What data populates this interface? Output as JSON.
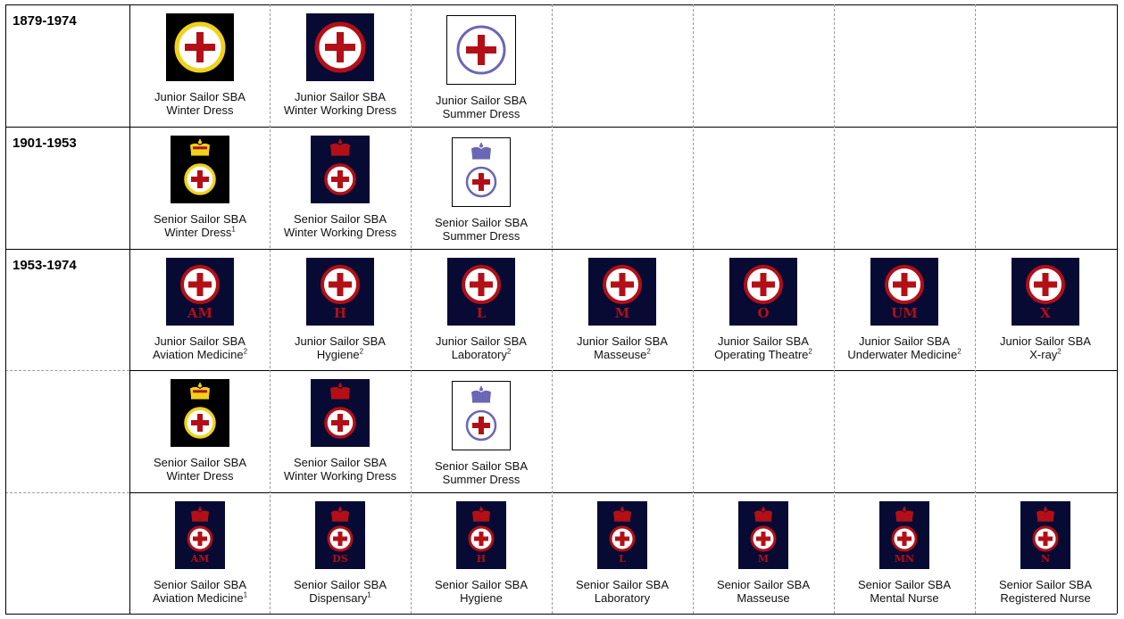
{
  "colors": {
    "navy": "#070a33",
    "black": "#000000",
    "red": "#b30f17",
    "gold": "#f0d21a",
    "lavender": "#6b67b4",
    "white": "#ffffff"
  },
  "rows": [
    {
      "period": "1879-1974",
      "badges": [
        {
          "title": "Junior Sailor SBA",
          "subtitle": "Winter Dress",
          "note": "",
          "style": "square",
          "bg": "black",
          "ring": "gold",
          "crown": false,
          "letters": ""
        },
        {
          "title": "Junior Sailor SBA",
          "subtitle": "Winter Working Dress",
          "note": "",
          "style": "square",
          "bg": "navy",
          "ring": "red",
          "crown": false,
          "letters": ""
        },
        {
          "title": "Junior Sailor SBA",
          "subtitle": "Summer Dress",
          "note": "",
          "style": "square",
          "bg": "white",
          "ring": "lavender",
          "crown": false,
          "letters": ""
        }
      ]
    },
    {
      "period": "1901-1953",
      "badges": [
        {
          "title": "Senior Sailor SBA",
          "subtitle": "Winter Dress",
          "note": "1",
          "style": "crown",
          "bg": "black",
          "ring": "gold",
          "crown": true,
          "crownColor": "gold",
          "letters": ""
        },
        {
          "title": "Senior Sailor SBA",
          "subtitle": "Winter Working Dress",
          "note": "",
          "style": "crown",
          "bg": "navy",
          "ring": "red",
          "crown": true,
          "crownColor": "red",
          "letters": ""
        },
        {
          "title": "Senior Sailor SBA",
          "subtitle": "Summer Dress",
          "note": "",
          "style": "crown",
          "bg": "white",
          "ring": "lavender",
          "crown": true,
          "crownColor": "lavender",
          "letters": ""
        }
      ]
    },
    {
      "period": "1953-1974",
      "badges": [
        {
          "title": "Junior Sailor SBA",
          "subtitle": "Aviation Medicine",
          "note": "2",
          "style": "letter",
          "bg": "navy",
          "ring": "red",
          "crown": false,
          "letters": "AM"
        },
        {
          "title": "Junior Sailor SBA",
          "subtitle": "Hygiene",
          "note": "2",
          "style": "letter",
          "bg": "navy",
          "ring": "red",
          "crown": false,
          "letters": "H"
        },
        {
          "title": "Junior Sailor SBA",
          "subtitle": "Laboratory",
          "note": "2",
          "style": "letter",
          "bg": "navy",
          "ring": "red",
          "crown": false,
          "letters": "L"
        },
        {
          "title": "Junior Sailor SBA",
          "subtitle": "Masseuse",
          "note": "2",
          "style": "letter",
          "bg": "navy",
          "ring": "red",
          "crown": false,
          "letters": "M"
        },
        {
          "title": "Junior Sailor SBA",
          "subtitle": "Operating Theatre",
          "note": "2",
          "style": "letter",
          "bg": "navy",
          "ring": "red",
          "crown": false,
          "letters": "O"
        },
        {
          "title": "Junior Sailor SBA",
          "subtitle": "Underwater Medicine",
          "note": "2",
          "style": "letter",
          "bg": "navy",
          "ring": "red",
          "crown": false,
          "letters": "UM"
        },
        {
          "title": "Junior Sailor SBA",
          "subtitle": "X-ray",
          "note": "2",
          "style": "letter",
          "bg": "navy",
          "ring": "red",
          "crown": false,
          "letters": "X"
        }
      ]
    },
    {
      "period": "",
      "badges": [
        {
          "title": "Senior Sailor SBA",
          "subtitle": "Winter Dress",
          "note": "",
          "style": "crown",
          "bg": "black",
          "ring": "gold",
          "crown": true,
          "crownColor": "gold",
          "letters": ""
        },
        {
          "title": "Senior Sailor SBA",
          "subtitle": "Winter Working Dress",
          "note": "",
          "style": "crown",
          "bg": "navy",
          "ring": "red",
          "crown": true,
          "crownColor": "red",
          "letters": ""
        },
        {
          "title": "Senior Sailor SBA",
          "subtitle": "Summer Dress",
          "note": "",
          "style": "crown",
          "bg": "white",
          "ring": "lavender",
          "crown": true,
          "crownColor": "lavender",
          "letters": ""
        }
      ]
    },
    {
      "period": "",
      "badges": [
        {
          "title": "Senior Sailor SBA",
          "subtitle": "Aviation Medicine",
          "note": "1",
          "style": "crownletter",
          "bg": "navy",
          "ring": "red",
          "crown": true,
          "crownColor": "red",
          "letters": "AM"
        },
        {
          "title": "Senior Sailor SBA",
          "subtitle": "Dispensary",
          "note": "1",
          "style": "crownletter",
          "bg": "navy",
          "ring": "red",
          "crown": true,
          "crownColor": "red",
          "letters": "DS"
        },
        {
          "title": "Senior Sailor SBA",
          "subtitle": "Hygiene",
          "note": "",
          "style": "crownletter",
          "bg": "navy",
          "ring": "red",
          "crown": true,
          "crownColor": "red",
          "letters": "H"
        },
        {
          "title": "Senior Sailor SBA",
          "subtitle": "Laboratory",
          "note": "",
          "style": "crownletter",
          "bg": "navy",
          "ring": "red",
          "crown": true,
          "crownColor": "red",
          "letters": "L"
        },
        {
          "title": "Senior Sailor SBA",
          "subtitle": "Masseuse",
          "note": "",
          "style": "crownletter",
          "bg": "navy",
          "ring": "red",
          "crown": true,
          "crownColor": "red",
          "letters": "M"
        },
        {
          "title": "Senior Sailor SBA",
          "subtitle": "Mental Nurse",
          "note": "",
          "style": "crownletter",
          "bg": "navy",
          "ring": "red",
          "crown": true,
          "crownColor": "red",
          "letters": "MN"
        },
        {
          "title": "Senior Sailor SBA",
          "subtitle": "Registered Nurse",
          "note": "",
          "style": "crownletter",
          "bg": "navy",
          "ring": "red",
          "crown": true,
          "crownColor": "red",
          "letters": "N"
        }
      ]
    }
  ]
}
